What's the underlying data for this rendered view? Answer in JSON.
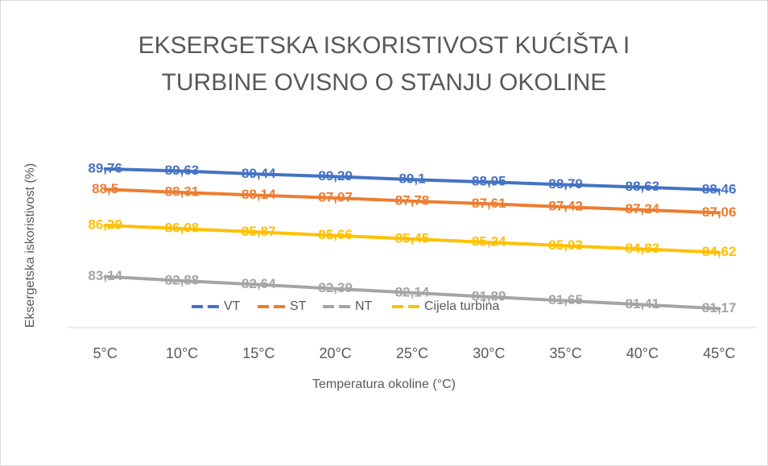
{
  "chart_data": {
    "type": "line",
    "title": [
      "EKSERGETSKA ISKORISTIVOST KUĆIŠTA I",
      "TURBINE OVISNO O STANJU OKOLINE"
    ],
    "xlabel": "Temperatura okoline (°C)",
    "ylabel": "Eksergetska iskoristivost (%)",
    "categories": [
      "5°C",
      "10°C",
      "15°C",
      "20°C",
      "25°C",
      "30°C",
      "35°C",
      "40°C",
      "45°C"
    ],
    "ylim": [
      80,
      90
    ],
    "legend": "bottom",
    "series": [
      {
        "name": "VT",
        "color": "#4472c4",
        "values": [
          89.76,
          89.63,
          89.44,
          89.29,
          89.1,
          88.95,
          88.79,
          88.63,
          88.46
        ],
        "value_labels": [
          "89,76",
          "89,63",
          "89,44",
          "89,29",
          "89,1",
          "88,95",
          "88,79",
          "88,63",
          "88,46"
        ]
      },
      {
        "name": "ST",
        "color": "#ed7d31",
        "values": [
          88.5,
          88.31,
          88.14,
          87.97,
          87.78,
          87.61,
          87.42,
          87.24,
          87.06
        ],
        "value_labels": [
          "88,5",
          "88,31",
          "88,14",
          "87,97",
          "87,78",
          "87,61",
          "87,42",
          "87,24",
          "87,06"
        ]
      },
      {
        "name": "NT",
        "color": "#a5a5a5",
        "values": [
          83.14,
          82.88,
          82.64,
          82.39,
          82.14,
          81.89,
          81.65,
          81.41,
          81.17
        ],
        "value_labels": [
          "83,14",
          "82,88",
          "82,64",
          "82,39",
          "82,14",
          "81,89",
          "81,65",
          "81,41",
          "81,17"
        ]
      },
      {
        "name": "Cijela turbina",
        "color": "#ffc000",
        "values": [
          86.29,
          86.08,
          85.87,
          85.66,
          85.45,
          85.24,
          85.03,
          84.83,
          84.62
        ],
        "value_labels": [
          "86,29",
          "86,08",
          "85,87",
          "85,66",
          "85,45",
          "85,24",
          "85,03",
          "84,83",
          "84,62"
        ]
      }
    ]
  }
}
